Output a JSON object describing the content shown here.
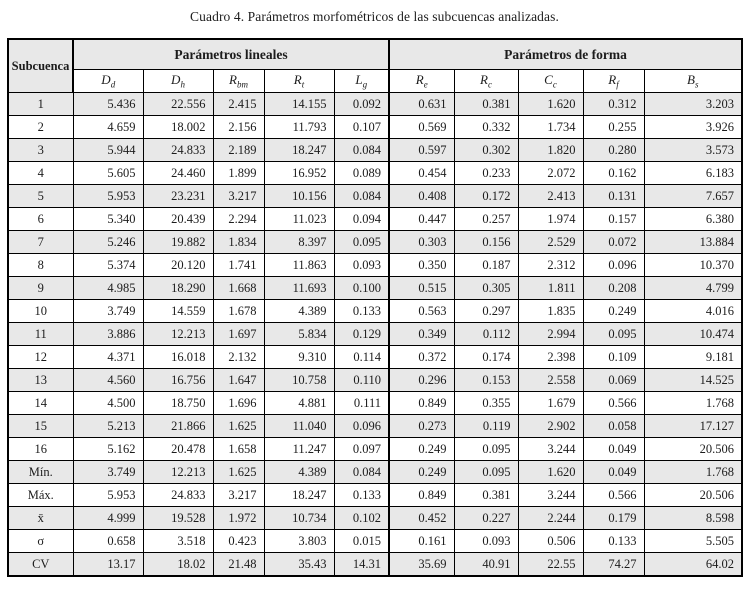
{
  "title": "Cuadro 4. Parámetros morfométricos de las subcuencas analizadas.",
  "colors": {
    "row_shade": "#e8e8e8",
    "border": "#000000",
    "text": "#1c1c1c"
  },
  "table": {
    "corner_header": "Subcuenca",
    "groups": [
      {
        "label": "Parámetros lineales",
        "columns": [
          {
            "base": "D",
            "sub": "d"
          },
          {
            "base": "D",
            "sub": "h"
          },
          {
            "base": "R",
            "sub": "bm"
          },
          {
            "base": "R",
            "sub": "t"
          },
          {
            "base": "L",
            "sub": "g"
          }
        ]
      },
      {
        "label": "Parámetros de forma",
        "columns": [
          {
            "base": "R",
            "sub": "e"
          },
          {
            "base": "R",
            "sub": "c"
          },
          {
            "base": "C",
            "sub": "c"
          },
          {
            "base": "R",
            "sub": "f"
          },
          {
            "base": "B",
            "sub": "s"
          }
        ]
      }
    ],
    "rows": [
      {
        "label": "1",
        "values": [
          "5.436",
          "22.556",
          "2.415",
          "14.155",
          "0.092",
          "0.631",
          "0.381",
          "1.620",
          "0.312",
          "3.203"
        ]
      },
      {
        "label": "2",
        "values": [
          "4.659",
          "18.002",
          "2.156",
          "11.793",
          "0.107",
          "0.569",
          "0.332",
          "1.734",
          "0.255",
          "3.926"
        ]
      },
      {
        "label": "3",
        "values": [
          "5.944",
          "24.833",
          "2.189",
          "18.247",
          "0.084",
          "0.597",
          "0.302",
          "1.820",
          "0.280",
          "3.573"
        ]
      },
      {
        "label": "4",
        "values": [
          "5.605",
          "24.460",
          "1.899",
          "16.952",
          "0.089",
          "0.454",
          "0.233",
          "2.072",
          "0.162",
          "6.183"
        ]
      },
      {
        "label": "5",
        "values": [
          "5.953",
          "23.231",
          "3.217",
          "10.156",
          "0.084",
          "0.408",
          "0.172",
          "2.413",
          "0.131",
          "7.657"
        ]
      },
      {
        "label": "6",
        "values": [
          "5.340",
          "20.439",
          "2.294",
          "11.023",
          "0.094",
          "0.447",
          "0.257",
          "1.974",
          "0.157",
          "6.380"
        ]
      },
      {
        "label": "7",
        "values": [
          "5.246",
          "19.882",
          "1.834",
          "8.397",
          "0.095",
          "0.303",
          "0.156",
          "2.529",
          "0.072",
          "13.884"
        ]
      },
      {
        "label": "8",
        "values": [
          "5.374",
          "20.120",
          "1.741",
          "11.863",
          "0.093",
          "0.350",
          "0.187",
          "2.312",
          "0.096",
          "10.370"
        ]
      },
      {
        "label": "9",
        "values": [
          "4.985",
          "18.290",
          "1.668",
          "11.693",
          "0.100",
          "0.515",
          "0.305",
          "1.811",
          "0.208",
          "4.799"
        ]
      },
      {
        "label": "10",
        "values": [
          "3.749",
          "14.559",
          "1.678",
          "4.389",
          "0.133",
          "0.563",
          "0.297",
          "1.835",
          "0.249",
          "4.016"
        ]
      },
      {
        "label": "11",
        "values": [
          "3.886",
          "12.213",
          "1.697",
          "5.834",
          "0.129",
          "0.349",
          "0.112",
          "2.994",
          "0.095",
          "10.474"
        ]
      },
      {
        "label": "12",
        "values": [
          "4.371",
          "16.018",
          "2.132",
          "9.310",
          "0.114",
          "0.372",
          "0.174",
          "2.398",
          "0.109",
          "9.181"
        ]
      },
      {
        "label": "13",
        "values": [
          "4.560",
          "16.756",
          "1.647",
          "10.758",
          "0.110",
          "0.296",
          "0.153",
          "2.558",
          "0.069",
          "14.525"
        ]
      },
      {
        "label": "14",
        "values": [
          "4.500",
          "18.750",
          "1.696",
          "4.881",
          "0.111",
          "0.849",
          "0.355",
          "1.679",
          "0.566",
          "1.768"
        ]
      },
      {
        "label": "15",
        "values": [
          "5.213",
          "21.866",
          "1.625",
          "11.040",
          "0.096",
          "0.273",
          "0.119",
          "2.902",
          "0.058",
          "17.127"
        ]
      },
      {
        "label": "16",
        "values": [
          "5.162",
          "20.478",
          "1.658",
          "11.247",
          "0.097",
          "0.249",
          "0.095",
          "3.244",
          "0.049",
          "20.506"
        ]
      },
      {
        "label": "Mín.",
        "values": [
          "3.749",
          "12.213",
          "1.625",
          "4.389",
          "0.084",
          "0.249",
          "0.095",
          "1.620",
          "0.049",
          "1.768"
        ]
      },
      {
        "label": "Máx.",
        "values": [
          "5.953",
          "24.833",
          "3.217",
          "18.247",
          "0.133",
          "0.849",
          "0.381",
          "3.244",
          "0.566",
          "20.506"
        ]
      },
      {
        "label": "x̄",
        "values": [
          "4.999",
          "19.528",
          "1.972",
          "10.734",
          "0.102",
          "0.452",
          "0.227",
          "2.244",
          "0.179",
          "8.598"
        ]
      },
      {
        "label": "σ",
        "values": [
          "0.658",
          "3.518",
          "0.423",
          "3.803",
          "0.015",
          "0.161",
          "0.093",
          "0.506",
          "0.133",
          "5.505"
        ]
      },
      {
        "label": "CV",
        "values": [
          "13.17",
          "18.02",
          "21.48",
          "35.43",
          "14.31",
          "35.69",
          "40.91",
          "22.55",
          "74.27",
          "64.02"
        ]
      }
    ]
  }
}
